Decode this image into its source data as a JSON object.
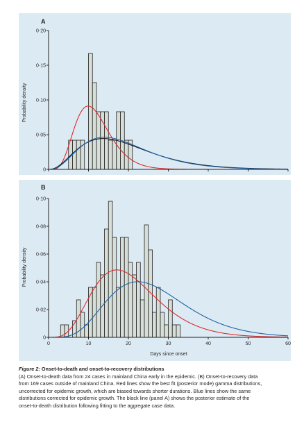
{
  "colors": {
    "panel_background": "#dcebf3",
    "bar_fill": "#d5dfd7",
    "red_line": "#e0282d",
    "blue_line": "#1f62a8",
    "black_line": "#1a1a1a"
  },
  "chart_data": [
    {
      "panel": "A",
      "type": "bar",
      "ylabel": "Probability density",
      "xlabel": "",
      "ylim": [
        0,
        0.2
      ],
      "yticks": [
        "0",
        "0·05",
        "0·10",
        "0·15",
        "0·20"
      ],
      "xlim": [
        0,
        60
      ],
      "grid": false,
      "histogram": {
        "bin_width": 1,
        "bins": [
          {
            "x": 5,
            "y": 0.042
          },
          {
            "x": 6,
            "y": 0.042
          },
          {
            "x": 7,
            "y": 0.042
          },
          {
            "x": 8,
            "y": 0.042
          },
          {
            "x": 10,
            "y": 0.167
          },
          {
            "x": 11,
            "y": 0.125
          },
          {
            "x": 12,
            "y": 0.083
          },
          {
            "x": 13,
            "y": 0.083
          },
          {
            "x": 14,
            "y": 0.083
          },
          {
            "x": 15,
            "y": 0.042
          },
          {
            "x": 16,
            "y": 0.042
          },
          {
            "x": 17,
            "y": 0.083
          },
          {
            "x": 18,
            "y": 0.083
          },
          {
            "x": 19,
            "y": 0.042
          },
          {
            "x": 20,
            "y": 0.042
          }
        ]
      },
      "series": [
        {
          "color": "red",
          "curve": "gamma",
          "shape": 6.3,
          "scale": 1.87
        },
        {
          "color": "black",
          "curve": "gamma",
          "shape": 3.5,
          "scale": 5.5
        },
        {
          "color": "blue",
          "curve": "gamma",
          "shape": 3.8,
          "scale": 5.0
        }
      ]
    },
    {
      "panel": "B",
      "type": "bar",
      "ylabel": "Probability density",
      "xlabel": "Days since onset",
      "ylim": [
        0,
        0.1
      ],
      "yticks": [
        "0",
        "0·02",
        "0·04",
        "0·06",
        "0·08",
        "0·10"
      ],
      "xlim": [
        0,
        60
      ],
      "xticks": [
        "0",
        "10",
        "20",
        "30",
        "40",
        "50",
        "60"
      ],
      "grid": false,
      "histogram": {
        "bin_width": 1,
        "bins": [
          {
            "x": 3,
            "y": 0.009
          },
          {
            "x": 4,
            "y": 0.009
          },
          {
            "x": 6,
            "y": 0.012
          },
          {
            "x": 7,
            "y": 0.027
          },
          {
            "x": 8,
            "y": 0.018
          },
          {
            "x": 9,
            "y": 0.009
          },
          {
            "x": 10,
            "y": 0.036
          },
          {
            "x": 11,
            "y": 0.036
          },
          {
            "x": 12,
            "y": 0.054
          },
          {
            "x": 13,
            "y": 0.045
          },
          {
            "x": 14,
            "y": 0.078
          },
          {
            "x": 15,
            "y": 0.098
          },
          {
            "x": 16,
            "y": 0.072
          },
          {
            "x": 17,
            "y": 0.036
          },
          {
            "x": 18,
            "y": 0.072
          },
          {
            "x": 19,
            "y": 0.072
          },
          {
            "x": 20,
            "y": 0.054
          },
          {
            "x": 21,
            "y": 0.045
          },
          {
            "x": 22,
            "y": 0.054
          },
          {
            "x": 23,
            "y": 0.027
          },
          {
            "x": 24,
            "y": 0.081
          },
          {
            "x": 25,
            "y": 0.063
          },
          {
            "x": 26,
            "y": 0.018
          },
          {
            "x": 27,
            "y": 0.036
          },
          {
            "x": 28,
            "y": 0.018
          },
          {
            "x": 29,
            "y": 0.009
          },
          {
            "x": 30,
            "y": 0.027
          },
          {
            "x": 31,
            "y": 0.009
          },
          {
            "x": 32,
            "y": 0.009
          }
        ]
      },
      "series": [
        {
          "color": "red",
          "curve": "gamma",
          "shape": 5.5,
          "scale": 3.8
        },
        {
          "color": "blue",
          "curve": "gamma",
          "shape": 6.2,
          "scale": 4.3
        }
      ]
    }
  ],
  "caption": {
    "figure": "Figure 2:",
    "title": " Onset-to-death and onset-to-recovery distributions",
    "lines": [
      "(A) Onset-to-death data from 24 cases in mainland China early in the epidemic. (B) Onset-to-recovery data",
      "from 169 cases outside of mainland China. Red lines show the best fit (posterior mode) gamma distributions,",
      "uncorrected for epidemic growth, which are biased towards shorter durations. Blue lines show the same",
      "distributions corrected for epidemic growth. The black line (panel A) shows the posterior estimate of the",
      "onset-to-death distribution following fitting to the aggregate case data."
    ]
  }
}
